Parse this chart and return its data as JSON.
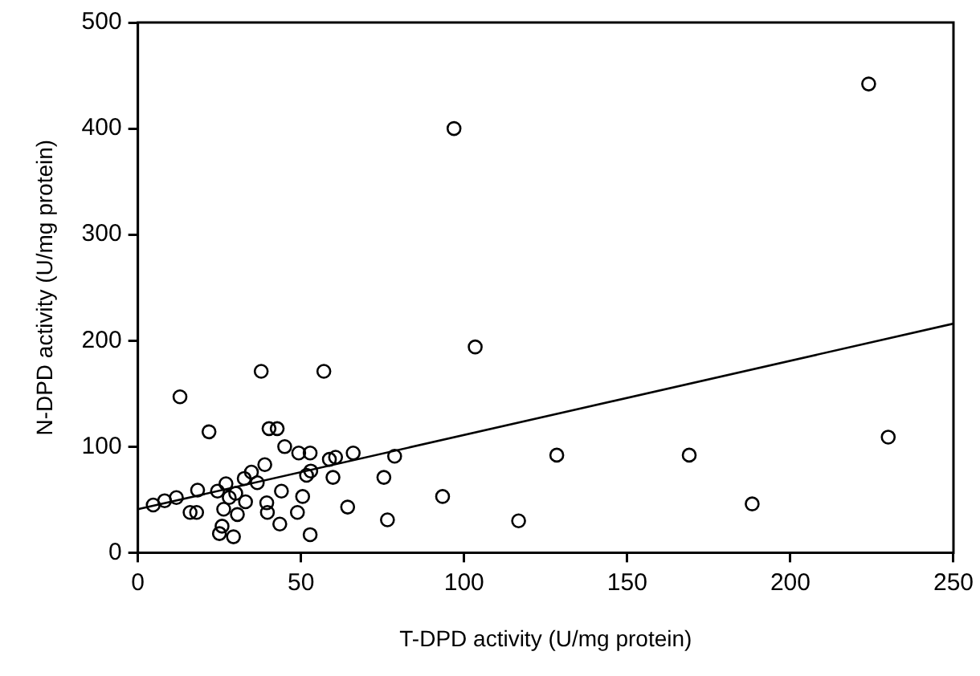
{
  "chart_data": {
    "type": "scatter",
    "xlabel": "T-DPD activity (U/mg protein)",
    "ylabel": "N-DPD activity (U/mg protein)",
    "xlim": [
      0,
      250
    ],
    "xticks": [
      0,
      50,
      100,
      150,
      200,
      250
    ],
    "ylim": [
      0,
      500
    ],
    "yticks": [
      0,
      100,
      200,
      300,
      400,
      500
    ],
    "grid": false,
    "legend": false,
    "marker": "circle",
    "series": [
      {
        "color": "#000000",
        "x": [
          4.7,
          8.2,
          11.8,
          12.9,
          16,
          18,
          18.3,
          21.8,
          24.4,
          25,
          25.8,
          26.3,
          27,
          28,
          29.3,
          30,
          30.5,
          32.6,
          33,
          34.8,
          36.6,
          37.8,
          38.9,
          39.5,
          39.7,
          40.2,
          42.7,
          43.5,
          44,
          45,
          48.9,
          49.3,
          50.5,
          51.7,
          52.8,
          52.8,
          53,
          57,
          58.7,
          59.8,
          60.6,
          64.3,
          66,
          75.4,
          76.5,
          78.7,
          93.4,
          96.9,
          103.4,
          116.7,
          128.4,
          169,
          188.3,
          224,
          230
        ],
        "values": [
          45,
          49,
          52,
          147,
          38,
          38,
          59,
          114,
          58,
          18,
          25,
          41,
          65,
          52,
          15,
          56,
          36,
          70,
          48,
          76,
          66,
          171,
          83,
          47,
          38,
          117,
          117,
          27,
          58,
          100,
          38,
          94,
          53,
          73,
          94,
          17,
          77,
          171,
          88,
          71,
          90,
          43,
          94,
          71,
          31,
          91,
          53,
          400,
          194,
          30,
          92,
          92,
          46,
          442,
          109
        ]
      },
      {
        "type": "line",
        "color": "#000000",
        "x": [
          0,
          250
        ],
        "values": [
          41,
          216
        ],
        "marker": "none"
      }
    ]
  }
}
